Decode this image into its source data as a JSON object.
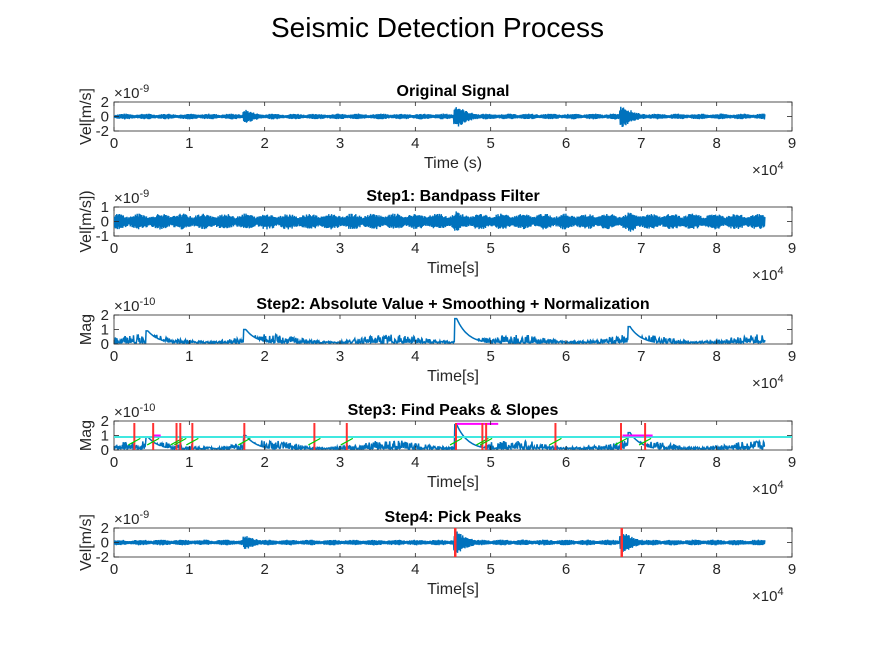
{
  "figure_title": "Seismic Detection Process",
  "colors": {
    "signal": "#0072BD",
    "peak_marker": "#FF3030",
    "slope": "#FF00FF",
    "threshold": "#40E8E0",
    "trend": "#00CC00"
  },
  "chart_data": [
    {
      "type": "line",
      "title": "Original Signal",
      "xlabel": "Time (s)",
      "ylabel": "Vel[m/s]",
      "xlim": [
        0,
        90000
      ],
      "ylim": [
        -2e-09,
        2e-09
      ],
      "xticks": [
        "0",
        "1",
        "2",
        "3",
        "4",
        "5",
        "6",
        "7",
        "8",
        "9"
      ],
      "yticks": [
        "-2",
        "0",
        "2"
      ],
      "x_exponent": "×10",
      "x_exponent_power": "4",
      "y_exponent": "×10",
      "y_exponent_power": "-9",
      "series": [
        {
          "x_range": [
            0,
            86400
          ],
          "bursts": [
            [
              17500,
              0.5
            ],
            [
              45500,
              0.8
            ],
            [
              67500,
              0.8
            ]
          ],
          "baseline_amplitude": 0.2
        }
      ]
    },
    {
      "type": "line",
      "title": "Step1: Bandpass Filter",
      "xlabel": "Time[s]",
      "ylabel": "Vel[m/s])",
      "xlim": [
        0,
        90000
      ],
      "ylim": [
        -1e-09,
        1e-09
      ],
      "xticks": [
        "0",
        "1",
        "2",
        "3",
        "4",
        "5",
        "6",
        "7",
        "8",
        "9"
      ],
      "yticks": [
        "-1",
        "0",
        "1"
      ],
      "x_exponent": "×10",
      "x_exponent_power": "4",
      "y_exponent": "×10",
      "y_exponent_power": "-9",
      "series": [
        {
          "x_range": [
            0,
            86400
          ],
          "bursts": [
            [
              17500,
              0.6
            ],
            [
              45500,
              0.75
            ],
            [
              68500,
              0.8
            ]
          ],
          "baseline_amplitude": 0.55
        }
      ]
    },
    {
      "type": "line",
      "title": "Step2: Absolute Value + Smoothing + Normalization",
      "xlabel": "Time[s]",
      "ylabel": "Mag",
      "xlim": [
        0,
        90000
      ],
      "ylim": [
        0,
        2e-10
      ],
      "xticks": [
        "0",
        "1",
        "2",
        "3",
        "4",
        "5",
        "6",
        "7",
        "8",
        "9"
      ],
      "yticks": [
        "0",
        "1",
        "2"
      ],
      "x_exponent": "×10",
      "x_exponent_power": "4",
      "y_exponent": "×10",
      "y_exponent_power": "-10",
      "series": [
        {
          "x_range": [
            0,
            86400
          ],
          "events": [
            [
              4500,
              0.9
            ],
            [
              17500,
              1.0
            ],
            [
              45500,
              1.75
            ],
            [
              68500,
              1.2
            ]
          ],
          "baseline": 0.6
        }
      ]
    },
    {
      "type": "line",
      "title": "Step3: Find Peaks & Slopes",
      "xlabel": "Time[s]",
      "ylabel": "Mag",
      "xlim": [
        0,
        90000
      ],
      "ylim": [
        0,
        2e-10
      ],
      "xticks": [
        "0",
        "1",
        "2",
        "3",
        "4",
        "5",
        "6",
        "7",
        "8",
        "9"
      ],
      "yticks": [
        "0",
        "1",
        "2"
      ],
      "x_exponent": "×10",
      "x_exponent_power": "4",
      "y_exponent": "×10",
      "y_exponent_power": "-10",
      "threshold": 0.9,
      "peaks": [
        2700,
        5200,
        8300,
        8800,
        10400,
        17300,
        26600,
        30900,
        45400,
        48900,
        49400,
        58600,
        67300,
        70500
      ],
      "slopes": [
        [
          45500,
          51000,
          1.8
        ],
        [
          5200,
          6200,
          1.0
        ],
        [
          67500,
          71500,
          1.0
        ]
      ],
      "series": [
        {
          "x_range": [
            0,
            86400
          ],
          "events": [
            [
              4500,
              0.9
            ],
            [
              17500,
              1.0
            ],
            [
              45500,
              1.75
            ],
            [
              68500,
              1.2
            ]
          ],
          "baseline": 0.6
        }
      ]
    },
    {
      "type": "line",
      "title": "Step4: Pick Peaks",
      "xlabel": "Time[s]",
      "ylabel": "Vel[m/s]",
      "xlim": [
        0,
        90000
      ],
      "ylim": [
        -2e-09,
        2e-09
      ],
      "xticks": [
        "0",
        "1",
        "2",
        "3",
        "4",
        "5",
        "6",
        "7",
        "8",
        "9"
      ],
      "yticks": [
        "-2",
        "0",
        "2"
      ],
      "x_exponent": "×10",
      "x_exponent_power": "4",
      "y_exponent": "×10",
      "y_exponent_power": "-9",
      "picks": [
        45300,
        67400
      ],
      "series": [
        {
          "x_range": [
            0,
            86400
          ],
          "bursts": [
            [
              17500,
              0.5
            ],
            [
              45500,
              0.8
            ],
            [
              67500,
              0.8
            ]
          ],
          "baseline_amplitude": 0.2
        }
      ]
    }
  ]
}
